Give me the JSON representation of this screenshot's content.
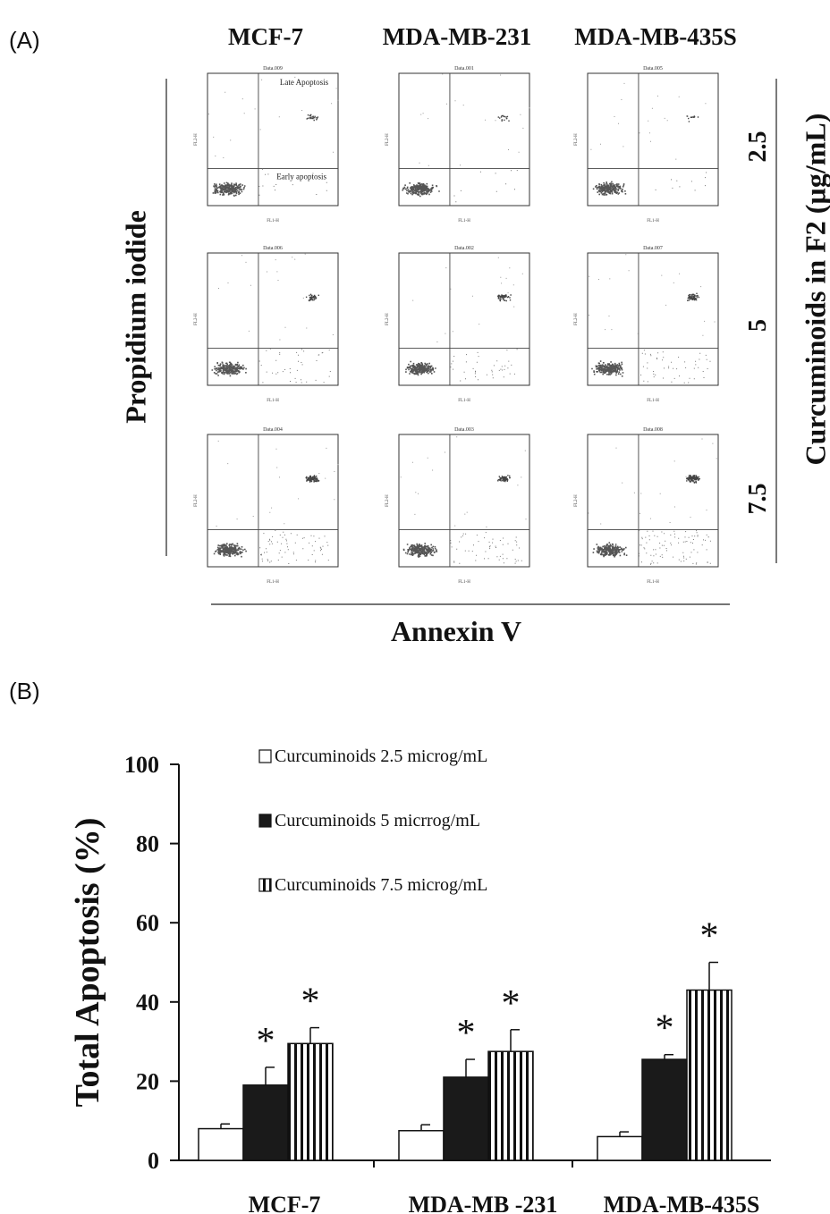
{
  "panel_a": {
    "label": "(A)",
    "columns": [
      "MCF-7",
      "MDA-MB-231",
      "MDA-MB-435S"
    ],
    "doses": [
      "2.5",
      "5",
      "7.5"
    ],
    "y_title": "Propidium iodide",
    "x_title": "Annexin V",
    "right_title": "Curcuminoids in F2 (µg/mL)",
    "quadrant_labels": {
      "upper_right": "Late Apoptosis",
      "lower_right": "Early apoptosis"
    },
    "plots": [
      [
        "Data.009",
        "Data.001",
        "Data.005"
      ],
      [
        "Data.006",
        "Data.002",
        "Data.007"
      ],
      [
        "Data.004",
        "Data.003",
        "Data.008"
      ]
    ],
    "axis_x_label": "FL1-H",
    "axis_y_label": "FL2-H"
  },
  "panel_b": {
    "label": "(B)"
  },
  "chart_data": {
    "type": "bar",
    "categories": [
      "MCF-7",
      "MDA-MB -231",
      "MDA-MB-435S"
    ],
    "ylabel": "Total Apoptosis (%)",
    "ylim": [
      0,
      100
    ],
    "yticks": [
      "0",
      "20",
      "40",
      "60",
      "80",
      "100"
    ],
    "legend_placement": "top-left",
    "series": [
      {
        "name": "Curcuminoids 2.5 microg/mL",
        "fill": "white",
        "values": [
          8,
          7.5,
          6
        ],
        "errors": [
          1.2,
          1.5,
          1.2
        ],
        "significant": [
          false,
          false,
          false
        ]
      },
      {
        "name": "Curcuminoids 5 micrrog/mL",
        "fill": "black",
        "values": [
          19,
          21,
          25.5
        ],
        "errors": [
          4.5,
          4.5,
          1.2
        ],
        "significant": [
          true,
          true,
          true
        ]
      },
      {
        "name": "Curcuminoids 7.5 microg/mL",
        "fill": "striped",
        "values": [
          29.5,
          27.5,
          43
        ],
        "errors": [
          4,
          5.5,
          7
        ],
        "significant": [
          true,
          true,
          true
        ]
      }
    ],
    "significance_marker": "*"
  }
}
